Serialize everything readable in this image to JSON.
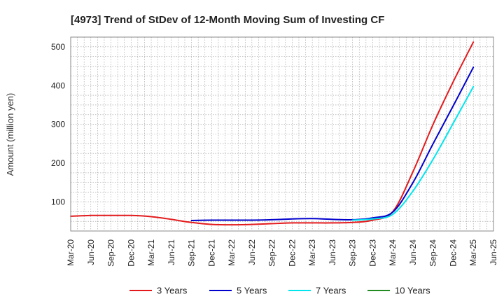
{
  "chart_data": {
    "type": "line",
    "title": "[4973]  Trend of StDev of 12-Month Moving Sum of Investing CF",
    "xlabel": "",
    "ylabel": "Amount (million yen)",
    "ylim": [
      25,
      525
    ],
    "yticks": [
      100,
      200,
      300,
      400,
      500
    ],
    "x_ticks": [
      "Mar-20",
      "Jun-20",
      "Sep-20",
      "Dec-20",
      "Mar-21",
      "Jun-21",
      "Sep-21",
      "Dec-21",
      "Mar-22",
      "Jun-22",
      "Sep-22",
      "Dec-22",
      "Mar-23",
      "Jun-23",
      "Sep-23",
      "Dec-23",
      "Mar-24",
      "Jun-24",
      "Sep-24",
      "Dec-24",
      "Mar-25",
      "Jun-25"
    ],
    "grid": true,
    "legend_position": "bottom",
    "series": [
      {
        "name": "3 Years",
        "color": "#e31a1c",
        "x": [
          "Mar-20",
          "Jun-20",
          "Sep-20",
          "Dec-20",
          "Mar-21",
          "Jun-21",
          "Sep-21",
          "Dec-21",
          "Mar-22",
          "Jun-22",
          "Sep-22",
          "Dec-22",
          "Mar-23",
          "Jun-23",
          "Sep-23",
          "Dec-23",
          "Mar-24",
          "Jun-24",
          "Sep-24",
          "Dec-24",
          "Mar-25"
        ],
        "values": [
          63,
          65,
          65,
          65,
          62,
          55,
          47,
          42,
          41,
          42,
          44,
          46,
          46,
          46,
          47,
          53,
          75,
          178,
          300,
          410,
          512
        ]
      },
      {
        "name": "5 Years",
        "color": "#0000cc",
        "x": [
          "Sep-21",
          "Dec-21",
          "Mar-22",
          "Jun-22",
          "Sep-22",
          "Dec-22",
          "Mar-23",
          "Jun-23",
          "Sep-23",
          "Dec-23",
          "Mar-24",
          "Jun-24",
          "Sep-24",
          "Dec-24",
          "Mar-25"
        ],
        "values": [
          52,
          53,
          53,
          53,
          54,
          56,
          57,
          55,
          54,
          59,
          74,
          150,
          250,
          348,
          447
        ]
      },
      {
        "name": "7 Years",
        "color": "#00e5ee",
        "x": [
          "Sep-23",
          "Dec-23",
          "Mar-24",
          "Jun-24",
          "Sep-24",
          "Dec-24",
          "Mar-25"
        ],
        "values": [
          53,
          56,
          68,
          128,
          210,
          303,
          397
        ]
      },
      {
        "name": "10 Years",
        "color": "#228b22",
        "x": [],
        "values": []
      }
    ]
  }
}
